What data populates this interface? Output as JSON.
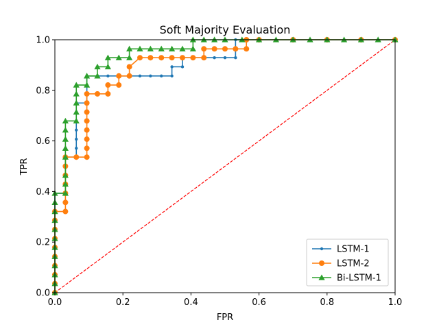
{
  "chart_data": {
    "type": "line",
    "title": "Soft Majority Evaluation",
    "xlabel": "FPR",
    "ylabel": "TPR",
    "xlim": [
      0,
      1
    ],
    "ylim": [
      0,
      1
    ],
    "x_ticks": [
      "0.0",
      "0.2",
      "0.4",
      "0.6",
      "0.8",
      "1.0"
    ],
    "y_ticks": [
      "0.0",
      "0.2",
      "0.4",
      "0.6",
      "0.8",
      "1.0"
    ],
    "grid": false,
    "legend_position": "lower-right",
    "series": [
      {
        "name": "LSTM-1",
        "color": "#1f77b4",
        "marker": "point",
        "x": [
          0,
          0,
          0,
          0,
          0,
          0,
          0,
          0,
          0,
          0,
          0,
          0,
          0.031,
          0.031,
          0.031,
          0.031,
          0.031,
          0.031,
          0.063,
          0.063,
          0.063,
          0.063,
          0.063,
          0.063,
          0.094,
          0.094,
          0.125,
          0.156,
          0.188,
          0.219,
          0.25,
          0.281,
          0.313,
          0.344,
          0.344,
          0.375,
          0.375,
          0.406,
          0.438,
          0.469,
          0.5,
          0.531,
          0.531,
          0.563,
          0.6,
          0.7,
          0.8,
          0.9,
          1.0
        ],
        "y": [
          0,
          0.036,
          0.071,
          0.107,
          0.143,
          0.179,
          0.214,
          0.25,
          0.286,
          0.321,
          0.357,
          0.393,
          0.393,
          0.429,
          0.464,
          0.5,
          0.536,
          0.536,
          0.536,
          0.571,
          0.607,
          0.643,
          0.679,
          0.75,
          0.75,
          0.857,
          0.857,
          0.857,
          0.857,
          0.857,
          0.857,
          0.857,
          0.857,
          0.857,
          0.893,
          0.893,
          0.929,
          0.929,
          0.929,
          0.929,
          0.929,
          0.929,
          1.0,
          1.0,
          1.0,
          1.0,
          1.0,
          1.0,
          1.0
        ]
      },
      {
        "name": "LSTM-2",
        "color": "#ff7f0e",
        "marker": "circle",
        "x": [
          0,
          0,
          0,
          0,
          0,
          0,
          0,
          0,
          0,
          0,
          0.031,
          0.031,
          0.031,
          0.031,
          0.031,
          0.031,
          0.031,
          0.063,
          0.094,
          0.094,
          0.094,
          0.094,
          0.094,
          0.094,
          0.094,
          0.094,
          0.125,
          0.156,
          0.156,
          0.188,
          0.188,
          0.219,
          0.219,
          0.25,
          0.281,
          0.313,
          0.344,
          0.375,
          0.406,
          0.438,
          0.438,
          0.469,
          0.5,
          0.531,
          0.563,
          0.563,
          0.6,
          0.7,
          0.8,
          0.9,
          1.0
        ],
        "y": [
          0,
          0.036,
          0.071,
          0.107,
          0.143,
          0.179,
          0.214,
          0.25,
          0.286,
          0.321,
          0.321,
          0.357,
          0.393,
          0.429,
          0.464,
          0.5,
          0.536,
          0.536,
          0.536,
          0.571,
          0.607,
          0.643,
          0.679,
          0.714,
          0.75,
          0.786,
          0.786,
          0.786,
          0.821,
          0.821,
          0.857,
          0.857,
          0.893,
          0.929,
          0.929,
          0.929,
          0.929,
          0.929,
          0.929,
          0.929,
          0.964,
          0.964,
          0.964,
          0.964,
          0.964,
          1.0,
          1.0,
          1.0,
          1.0,
          1.0,
          1.0
        ]
      },
      {
        "name": "Bi-LSTM-1",
        "color": "#2ca02c",
        "marker": "triangle",
        "x": [
          0,
          0,
          0,
          0,
          0,
          0,
          0,
          0,
          0,
          0,
          0,
          0,
          0.031,
          0.031,
          0.031,
          0.031,
          0.031,
          0.031,
          0.031,
          0.031,
          0.063,
          0.063,
          0.063,
          0.063,
          0.063,
          0.094,
          0.094,
          0.125,
          0.125,
          0.156,
          0.156,
          0.188,
          0.219,
          0.219,
          0.25,
          0.281,
          0.313,
          0.344,
          0.375,
          0.406,
          0.406,
          0.438,
          0.469,
          0.5,
          0.55,
          0.6,
          0.65,
          0.7,
          0.75,
          0.8,
          0.85,
          0.9,
          0.95,
          1.0
        ],
        "y": [
          0,
          0.036,
          0.071,
          0.107,
          0.143,
          0.179,
          0.214,
          0.25,
          0.286,
          0.321,
          0.357,
          0.393,
          0.393,
          0.429,
          0.464,
          0.536,
          0.571,
          0.607,
          0.643,
          0.679,
          0.679,
          0.714,
          0.75,
          0.786,
          0.821,
          0.821,
          0.857,
          0.857,
          0.893,
          0.893,
          0.929,
          0.929,
          0.929,
          0.964,
          0.964,
          0.964,
          0.964,
          0.964,
          0.964,
          0.964,
          1.0,
          1.0,
          1.0,
          1.0,
          1.0,
          1.0,
          1.0,
          1.0,
          1.0,
          1.0,
          1.0,
          1.0,
          1.0,
          1.0
        ]
      }
    ],
    "reference_line": {
      "x": [
        0,
        1
      ],
      "y": [
        0,
        1
      ],
      "color": "#ff0000",
      "style": "dashed"
    }
  }
}
